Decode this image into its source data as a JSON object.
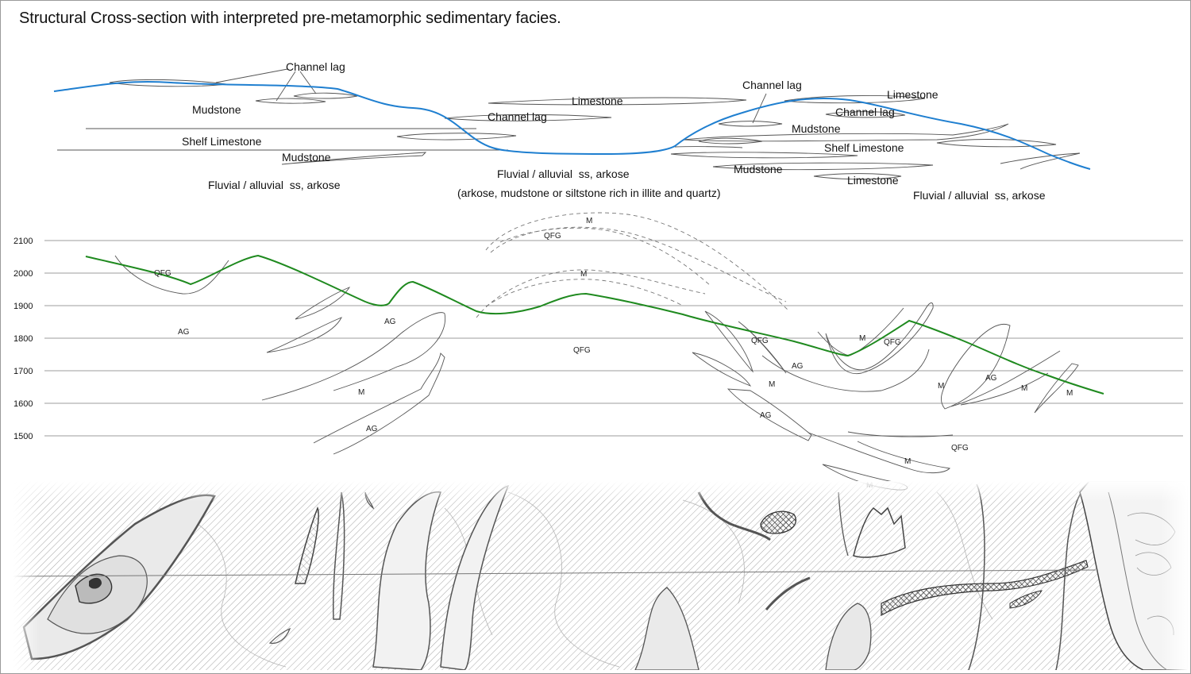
{
  "title": "Structural Cross-section with interpreted pre-metamorphic sedimentary facies.",
  "colors": {
    "paleo_surface": "#1f7fd0",
    "topographic_profile": "#1f8a1f",
    "outline": "#555555",
    "map_hatch": "#7a7a7a",
    "map_highlight": "#444444"
  },
  "facies_labels": [
    "Channel lag",
    "Mudstone",
    "Shelf Limestone",
    "Mudstone",
    "Fluvial / alluvial  ss, arkose",
    "Limestone",
    "Channel lag",
    "Fluvial / alluvial  ss, arkose",
    "(arkose, mudstone or siltstone rich in illite and quartz)",
    "Channel lag",
    "Limestone",
    "Channel lag",
    "Mudstone",
    "Shelf Limestone",
    "Mudstone",
    "Limestone",
    "Fluvial / alluvial  ss, arkose"
  ],
  "elevation_axis": {
    "ticks": [
      "2100",
      "2000",
      "1900",
      "1800",
      "1700",
      "1600",
      "1500"
    ]
  },
  "unit_labels": [
    "QFG",
    "AG",
    "AG",
    "M",
    "AG",
    "M",
    "QFG",
    "M",
    "QFG",
    "QFG",
    "AG",
    "M",
    "AG",
    "M",
    "QFG",
    "M",
    "AG",
    "M",
    "M",
    "QFG",
    "M",
    "M"
  ]
}
